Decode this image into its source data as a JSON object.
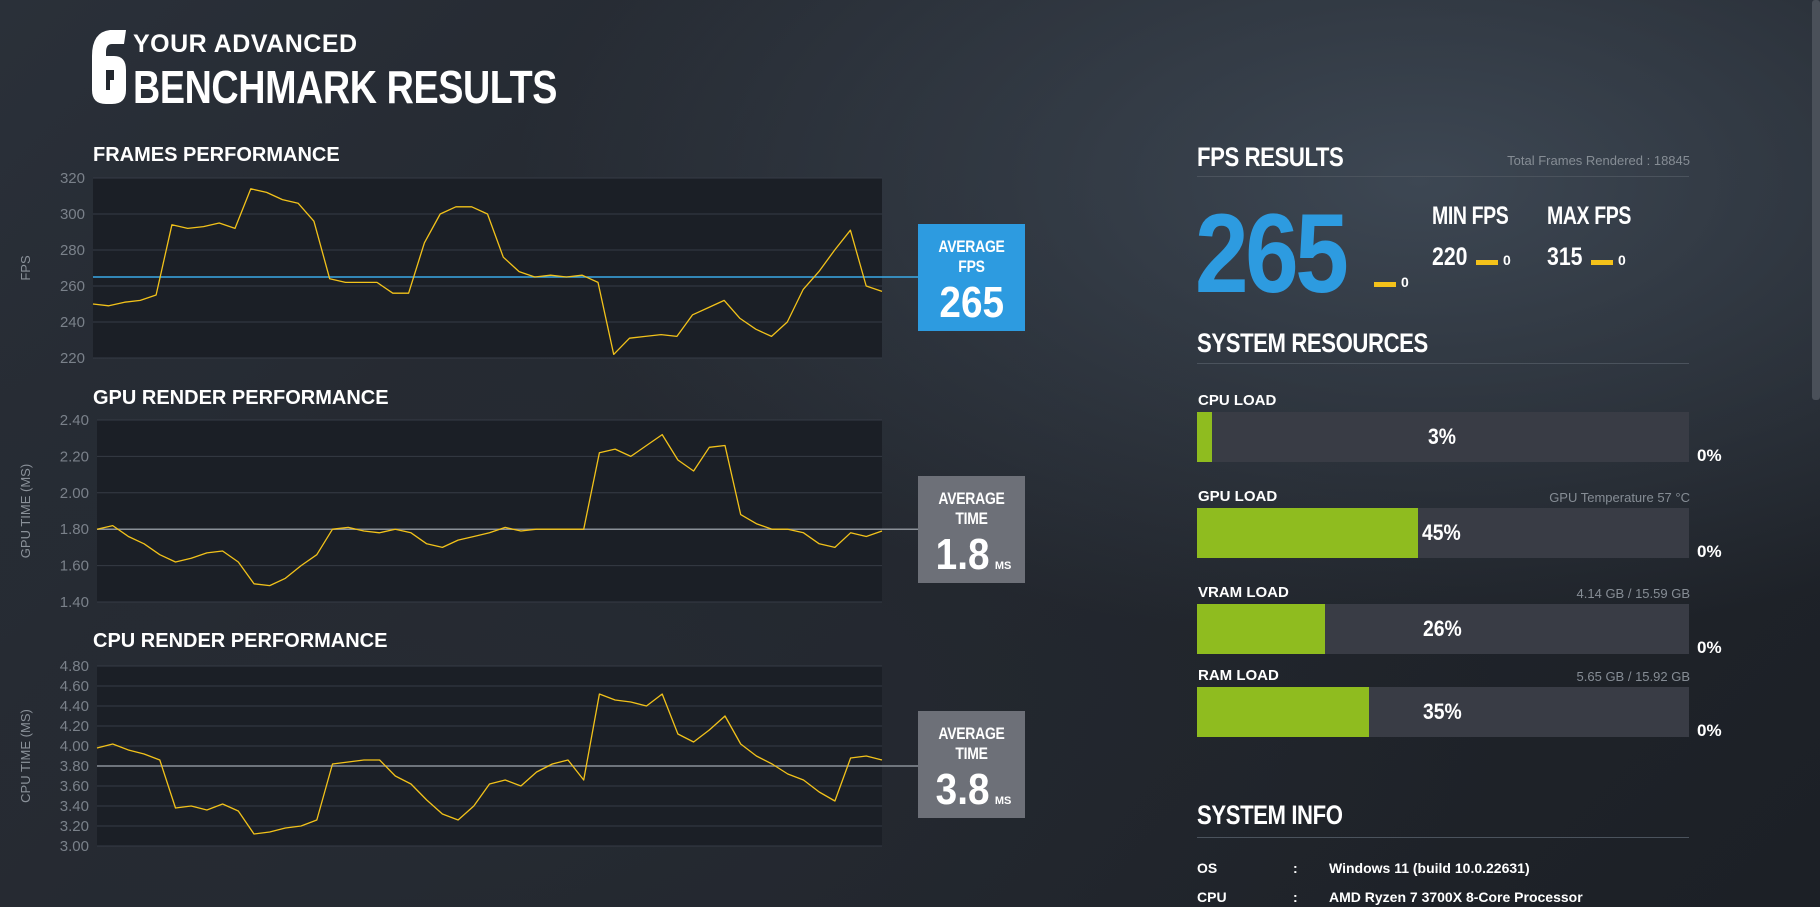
{
  "header": {
    "logo": "rainbow-six-siege-logo-icon",
    "line1": "YOUR ADVANCED",
    "line2": "BENCHMARK RESULTS"
  },
  "charts": {
    "frames": {
      "title": "FRAMES PERFORMANCE",
      "ylabel": "FPS",
      "avg_label": "AVERAGE FPS",
      "avg_value": "265",
      "avg_unit": ""
    },
    "gpu": {
      "title": "GPU RENDER PERFORMANCE",
      "ylabel": "GPU TIME (MS)",
      "avg_label": "AVERAGE TIME",
      "avg_value": "1.8",
      "avg_unit": "MS"
    },
    "cpu": {
      "title": "CPU RENDER PERFORMANCE",
      "ylabel": "CPU TIME (MS)",
      "avg_label": "AVERAGE TIME",
      "avg_value": "3.8",
      "avg_unit": "MS"
    }
  },
  "chart_data": [
    {
      "type": "line",
      "title": "FRAMES PERFORMANCE",
      "ylabel": "FPS",
      "ylim": [
        220,
        320
      ],
      "yticks": [
        "320",
        "300",
        "280",
        "260",
        "240",
        "220"
      ],
      "average_line": 265,
      "color": "#f2c21a",
      "average_color": "#3aa9e6",
      "series": [
        {
          "x": [
            0,
            2,
            4,
            6,
            8,
            10,
            12,
            14,
            16,
            18,
            20,
            22,
            24,
            26,
            28,
            30,
            32,
            34,
            36,
            38,
            40,
            42,
            44,
            46,
            48,
            50,
            52,
            54,
            56,
            58,
            60,
            62,
            64,
            66,
            68,
            70,
            72,
            74,
            76,
            78,
            80,
            82,
            84,
            86,
            88,
            90,
            92,
            94,
            96,
            98,
            100
          ],
          "values": [
            250,
            249,
            251,
            252,
            255,
            294,
            292,
            293,
            295,
            292,
            314,
            312,
            308,
            306,
            296,
            264,
            262,
            262,
            262,
            256,
            256,
            284,
            300,
            304,
            304,
            300,
            276,
            268,
            265,
            266,
            265,
            266,
            262,
            222,
            231,
            232,
            233,
            232,
            244,
            248,
            252,
            242,
            236,
            232,
            240,
            258,
            268,
            280,
            291,
            260,
            257
          ]
        }
      ]
    },
    {
      "type": "line",
      "title": "GPU RENDER PERFORMANCE",
      "ylabel": "GPU TIME (MS)",
      "ylim": [
        1.4,
        2.4
      ],
      "yticks": [
        "2.40",
        "2.20",
        "2.00",
        "1.80",
        "1.60",
        "1.40"
      ],
      "average_line": 1.8,
      "color": "#f2c21a",
      "average_color": "#8a9098",
      "series": [
        {
          "x": [
            0,
            2,
            4,
            6,
            8,
            10,
            12,
            14,
            16,
            18,
            20,
            22,
            24,
            26,
            28,
            30,
            32,
            34,
            36,
            38,
            40,
            42,
            44,
            46,
            48,
            50,
            52,
            54,
            56,
            58,
            60,
            62,
            64,
            66,
            68,
            70,
            72,
            74,
            76,
            78,
            80,
            82,
            84,
            86,
            88,
            90,
            92,
            94,
            96,
            98,
            100
          ],
          "values": [
            1.8,
            1.82,
            1.76,
            1.72,
            1.66,
            1.62,
            1.64,
            1.67,
            1.68,
            1.62,
            1.5,
            1.49,
            1.53,
            1.6,
            1.66,
            1.8,
            1.81,
            1.79,
            1.78,
            1.8,
            1.78,
            1.72,
            1.7,
            1.74,
            1.76,
            1.78,
            1.81,
            1.79,
            1.8,
            1.8,
            1.8,
            1.8,
            2.22,
            2.24,
            2.2,
            2.26,
            2.32,
            2.18,
            2.12,
            2.25,
            2.26,
            1.88,
            1.83,
            1.8,
            1.8,
            1.78,
            1.72,
            1.7,
            1.78,
            1.76,
            1.79
          ]
        }
      ]
    },
    {
      "type": "line",
      "title": "CPU RENDER PERFORMANCE",
      "ylabel": "CPU TIME (MS)",
      "ylim": [
        3.0,
        4.8
      ],
      "yticks": [
        "4.80",
        "4.60",
        "4.40",
        "4.20",
        "4.00",
        "3.80",
        "3.60",
        "3.40",
        "3.20",
        "3.00"
      ],
      "average_line": 3.8,
      "color": "#f2c21a",
      "average_color": "#8a9098",
      "series": [
        {
          "x": [
            0,
            2,
            4,
            6,
            8,
            10,
            12,
            14,
            16,
            18,
            20,
            22,
            24,
            26,
            28,
            30,
            32,
            34,
            36,
            38,
            40,
            42,
            44,
            46,
            48,
            50,
            52,
            54,
            56,
            58,
            60,
            62,
            64,
            66,
            68,
            70,
            72,
            74,
            76,
            78,
            80,
            82,
            84,
            86,
            88,
            90,
            92,
            94,
            96,
            98,
            100
          ],
          "values": [
            3.98,
            4.02,
            3.96,
            3.92,
            3.86,
            3.38,
            3.4,
            3.36,
            3.42,
            3.35,
            3.12,
            3.14,
            3.18,
            3.2,
            3.26,
            3.82,
            3.84,
            3.86,
            3.86,
            3.7,
            3.62,
            3.46,
            3.32,
            3.26,
            3.4,
            3.62,
            3.66,
            3.6,
            3.74,
            3.82,
            3.86,
            3.66,
            4.52,
            4.46,
            4.44,
            4.4,
            4.52,
            4.12,
            4.04,
            4.16,
            4.3,
            4.02,
            3.9,
            3.82,
            3.72,
            3.66,
            3.54,
            3.45,
            3.88,
            3.9,
            3.86
          ]
        }
      ]
    }
  ],
  "fps_results": {
    "title": "FPS RESULTS",
    "total_frames_label": "Total Frames Rendered : 18845",
    "avg_fps": "265",
    "avg_delta": "0",
    "min_label": "MIN FPS",
    "min_value": "220",
    "min_delta": "0",
    "max_label": "MAX FPS",
    "max_value": "315",
    "max_delta": "0",
    "delta_color": "#f4c21a"
  },
  "system_resources": {
    "title": "SYSTEM RESOURCES",
    "accent": "#8fbc1f",
    "items": [
      {
        "label": "CPU LOAD",
        "info": "",
        "value": 0.03,
        "pct": "3%",
        "delta": "0%"
      },
      {
        "label": "GPU LOAD",
        "info": "GPU Temperature 57 °C",
        "value": 0.45,
        "pct": "45%",
        "delta": "0%"
      },
      {
        "label": "VRAM LOAD",
        "info": "4.14 GB / 15.59 GB",
        "value": 0.26,
        "pct": "26%",
        "delta": "0%"
      },
      {
        "label": "RAM LOAD",
        "info": "5.65 GB / 15.92 GB",
        "value": 0.35,
        "pct": "35%",
        "delta": "0%"
      }
    ]
  },
  "system_info": {
    "title": "SYSTEM INFO",
    "separator": ":",
    "rows": [
      {
        "key": "OS",
        "value": "Windows 11 (build 10.0.22631)"
      },
      {
        "key": "CPU",
        "value": "AMD Ryzen 7 3700X 8-Core Processor"
      }
    ]
  }
}
